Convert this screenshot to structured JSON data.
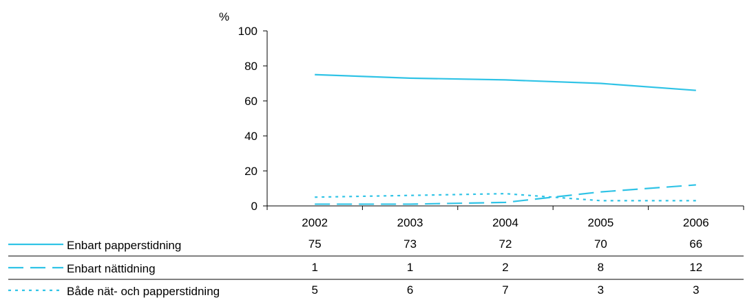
{
  "chart_data": {
    "type": "line",
    "x": [
      "2002",
      "2003",
      "2004",
      "2005",
      "2006"
    ],
    "y_unit_label": "%",
    "ylim": [
      0,
      100
    ],
    "yticks": [
      0,
      20,
      40,
      60,
      80,
      100
    ],
    "grid": false,
    "legend": "data-table-below",
    "series": [
      {
        "name": "Enbart papperstidning",
        "values": [
          75,
          73,
          72,
          70,
          66
        ],
        "style": "solid"
      },
      {
        "name": "Enbart nättidning",
        "values": [
          1,
          1,
          2,
          8,
          12
        ],
        "style": "dashed"
      },
      {
        "name": "Både nät- och papperstidning",
        "values": [
          5,
          6,
          7,
          3,
          3
        ],
        "style": "dotted"
      }
    ],
    "colors": {
      "series": "#2fc3e6",
      "axis": "#000000"
    }
  }
}
